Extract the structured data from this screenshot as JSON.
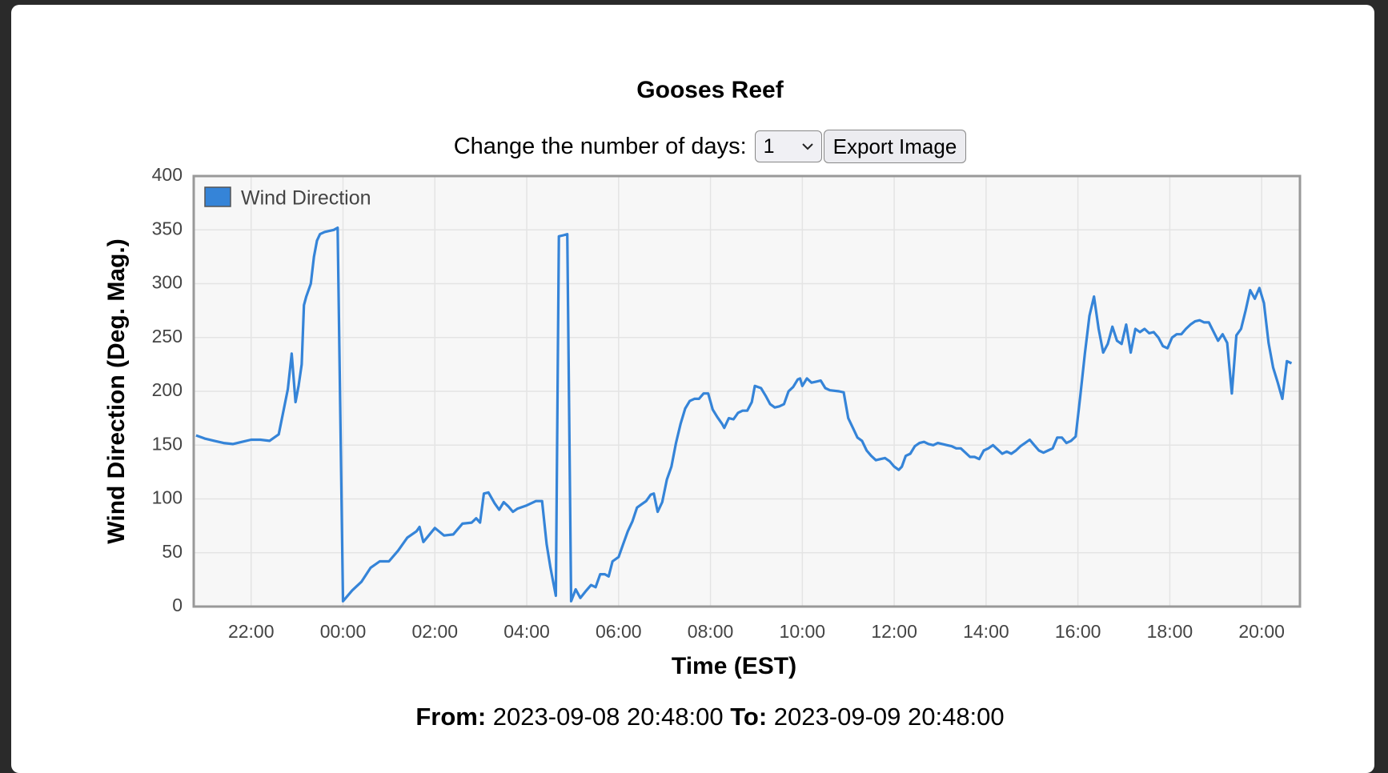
{
  "dialog": {
    "controls": {
      "label": "Change the number of days:",
      "days_option": "1",
      "export_button": "Export Image"
    },
    "footer": {
      "from_label": "From:",
      "from": "2023-09-08 20:48:00",
      "to_label": "To:",
      "to": "2023-09-09 20:48:00"
    }
  },
  "chart_data": {
    "type": "line",
    "title": "Gooses Reef",
    "xlabel": "Time (EST)",
    "ylabel": "Wind Direction (Deg. Mag.)",
    "x": [
      "2023-09-08T20:48",
      "2023-09-08T21:00",
      "2023-09-08T21:12",
      "2023-09-08T21:24",
      "2023-09-08T21:36",
      "2023-09-08T21:48",
      "2023-09-08T22:00",
      "2023-09-08T22:12",
      "2023-09-08T22:24",
      "2023-09-08T22:36",
      "2023-09-08T22:48",
      "2023-09-08T22:53",
      "2023-09-08T22:58",
      "2023-09-08T23:02",
      "2023-09-08T23:06",
      "2023-09-08T23:09",
      "2023-09-08T23:12",
      "2023-09-08T23:18",
      "2023-09-08T23:22",
      "2023-09-08T23:26",
      "2023-09-08T23:30",
      "2023-09-08T23:36",
      "2023-09-08T23:42",
      "2023-09-08T23:48",
      "2023-09-08T23:53",
      "2023-09-09T00:00",
      "2023-09-09T00:12",
      "2023-09-09T00:24",
      "2023-09-09T00:36",
      "2023-09-09T00:48",
      "2023-09-09T01:00",
      "2023-09-09T01:12",
      "2023-09-09T01:24",
      "2023-09-09T01:36",
      "2023-09-09T01:40",
      "2023-09-09T01:45",
      "2023-09-09T02:00",
      "2023-09-09T02:12",
      "2023-09-09T02:24",
      "2023-09-09T02:36",
      "2023-09-09T02:48",
      "2023-09-09T02:54",
      "2023-09-09T02:59",
      "2023-09-09T03:04",
      "2023-09-09T03:10",
      "2023-09-09T03:18",
      "2023-09-09T03:24",
      "2023-09-09T03:30",
      "2023-09-09T03:36",
      "2023-09-09T03:42",
      "2023-09-09T03:48",
      "2023-09-09T04:00",
      "2023-09-09T04:12",
      "2023-09-09T04:20",
      "2023-09-09T04:26",
      "2023-09-09T04:31",
      "2023-09-09T04:38",
      "2023-09-09T04:42",
      "2023-09-09T04:48",
      "2023-09-09T04:53",
      "2023-09-09T04:58",
      "2023-09-09T05:04",
      "2023-09-09T05:10",
      "2023-09-09T05:18",
      "2023-09-09T05:24",
      "2023-09-09T05:30",
      "2023-09-09T05:36",
      "2023-09-09T05:42",
      "2023-09-09T05:47",
      "2023-09-09T05:52",
      "2023-09-09T06:00",
      "2023-09-09T06:06",
      "2023-09-09T06:12",
      "2023-09-09T06:18",
      "2023-09-09T06:24",
      "2023-09-09T06:30",
      "2023-09-09T06:36",
      "2023-09-09T06:42",
      "2023-09-09T06:46",
      "2023-09-09T06:51",
      "2023-09-09T06:57",
      "2023-09-09T07:03",
      "2023-09-09T07:09",
      "2023-09-09T07:15",
      "2023-09-09T07:21",
      "2023-09-09T07:27",
      "2023-09-09T07:33",
      "2023-09-09T07:39",
      "2023-09-09T07:45",
      "2023-09-09T07:51",
      "2023-09-09T07:57",
      "2023-09-09T08:03",
      "2023-09-09T08:09",
      "2023-09-09T08:15",
      "2023-09-09T08:18",
      "2023-09-09T08:24",
      "2023-09-09T08:30",
      "2023-09-09T08:36",
      "2023-09-09T08:42",
      "2023-09-09T08:48",
      "2023-09-09T08:54",
      "2023-09-09T08:58",
      "2023-09-09T09:06",
      "2023-09-09T09:12",
      "2023-09-09T09:18",
      "2023-09-09T09:24",
      "2023-09-09T09:30",
      "2023-09-09T09:36",
      "2023-09-09T09:42",
      "2023-09-09T09:48",
      "2023-09-09T09:54",
      "2023-09-09T09:57",
      "2023-09-09T10:00",
      "2023-09-09T10:06",
      "2023-09-09T10:12",
      "2023-09-09T10:18",
      "2023-09-09T10:24",
      "2023-09-09T10:30",
      "2023-09-09T10:36",
      "2023-09-09T10:48",
      "2023-09-09T10:54",
      "2023-09-09T11:00",
      "2023-09-09T11:06",
      "2023-09-09T11:12",
      "2023-09-09T11:18",
      "2023-09-09T11:24",
      "2023-09-09T11:30",
      "2023-09-09T11:36",
      "2023-09-09T11:42",
      "2023-09-09T11:48",
      "2023-09-09T11:54",
      "2023-09-09T12:00",
      "2023-09-09T12:06",
      "2023-09-09T12:10",
      "2023-09-09T12:15",
      "2023-09-09T12:21",
      "2023-09-09T12:27",
      "2023-09-09T12:33",
      "2023-09-09T12:39",
      "2023-09-09T12:45",
      "2023-09-09T12:51",
      "2023-09-09T12:57",
      "2023-09-09T13:03",
      "2023-09-09T13:09",
      "2023-09-09T13:15",
      "2023-09-09T13:21",
      "2023-09-09T13:27",
      "2023-09-09T13:33",
      "2023-09-09T13:39",
      "2023-09-09T13:45",
      "2023-09-09T13:51",
      "2023-09-09T13:57",
      "2023-09-09T14:03",
      "2023-09-09T14:09",
      "2023-09-09T14:15",
      "2023-09-09T14:21",
      "2023-09-09T14:27",
      "2023-09-09T14:33",
      "2023-09-09T14:39",
      "2023-09-09T14:45",
      "2023-09-09T14:51",
      "2023-09-09T14:57",
      "2023-09-09T15:03",
      "2023-09-09T15:09",
      "2023-09-09T15:15",
      "2023-09-09T15:21",
      "2023-09-09T15:27",
      "2023-09-09T15:33",
      "2023-09-09T15:39",
      "2023-09-09T15:45",
      "2023-09-09T15:51",
      "2023-09-09T15:57",
      "2023-09-09T16:03",
      "2023-09-09T16:09",
      "2023-09-09T16:15",
      "2023-09-09T16:21",
      "2023-09-09T16:27",
      "2023-09-09T16:33",
      "2023-09-09T16:39",
      "2023-09-09T16:45",
      "2023-09-09T16:51",
      "2023-09-09T16:57",
      "2023-09-09T17:03",
      "2023-09-09T17:09",
      "2023-09-09T17:15",
      "2023-09-09T17:21",
      "2023-09-09T17:27",
      "2023-09-09T17:33",
      "2023-09-09T17:39",
      "2023-09-09T17:45",
      "2023-09-09T17:51",
      "2023-09-09T17:57",
      "2023-09-09T18:03",
      "2023-09-09T18:09",
      "2023-09-09T18:15",
      "2023-09-09T18:21",
      "2023-09-09T18:27",
      "2023-09-09T18:33",
      "2023-09-09T18:39",
      "2023-09-09T18:45",
      "2023-09-09T18:51",
      "2023-09-09T19:03",
      "2023-09-09T19:09",
      "2023-09-09T19:15",
      "2023-09-09T19:21",
      "2023-09-09T19:27",
      "2023-09-09T19:33",
      "2023-09-09T19:39",
      "2023-09-09T19:45",
      "2023-09-09T19:51",
      "2023-09-09T19:57",
      "2023-09-09T20:03",
      "2023-09-09T20:09",
      "2023-09-09T20:15",
      "2023-09-09T20:21",
      "2023-09-09T20:27",
      "2023-09-09T20:33",
      "2023-09-09T20:39"
    ],
    "series": [
      {
        "name": "Wind Direction",
        "color": "#3584d8",
        "values": [
          159,
          156,
          154,
          152,
          151,
          153,
          155,
          155,
          154,
          160,
          202,
          235,
          190,
          205,
          225,
          280,
          288,
          300,
          325,
          340,
          346,
          348,
          349,
          350,
          352,
          5,
          15,
          23,
          36,
          42,
          42,
          52,
          64,
          70,
          74,
          60,
          73,
          66,
          67,
          77,
          78,
          82,
          78,
          105,
          106,
          96,
          90,
          97,
          93,
          88,
          91,
          94,
          98,
          98,
          58,
          36,
          10,
          344,
          345,
          346,
          5,
          16,
          8,
          15,
          20,
          18,
          30,
          30,
          28,
          42,
          46,
          58,
          70,
          79,
          92,
          95,
          98,
          104,
          105,
          88,
          97,
          118,
          130,
          152,
          170,
          184,
          191,
          193,
          193,
          198,
          198,
          183,
          176,
          170,
          166,
          175,
          174,
          180,
          182,
          182,
          190,
          205,
          203,
          196,
          188,
          185,
          186,
          188,
          200,
          204,
          211,
          212,
          205,
          212,
          208,
          209,
          210,
          203,
          201,
          200,
          199,
          175,
          166,
          157,
          154,
          145,
          140,
          136,
          137,
          138,
          135,
          130,
          127,
          130,
          140,
          142,
          149,
          152,
          153,
          151,
          150,
          152,
          151,
          150,
          149,
          147,
          147,
          143,
          139,
          139,
          137,
          145,
          147,
          150,
          146,
          142,
          144,
          142,
          145,
          149,
          152,
          155,
          150,
          145,
          143,
          145,
          147,
          157,
          157,
          152,
          154,
          158,
          195,
          235,
          270,
          288,
          258,
          236,
          244,
          260,
          247,
          244,
          262,
          236,
          258,
          255,
          258,
          254,
          255,
          250,
          242,
          240,
          250,
          253,
          253,
          258,
          262,
          265,
          266,
          264,
          264,
          247,
          253,
          245,
          198,
          252,
          258,
          275,
          294,
          286,
          296,
          282,
          245,
          222,
          208,
          193,
          228,
          226
        ]
      }
    ],
    "xlim": [
      "2023-09-08T20:45",
      "2023-09-09T20:50"
    ],
    "xticks": [
      {
        "value": "2023-09-08T22:00",
        "label": "22:00"
      },
      {
        "value": "2023-09-09T00:00",
        "label": "00:00"
      },
      {
        "value": "2023-09-09T02:00",
        "label": "02:00"
      },
      {
        "value": "2023-09-09T04:00",
        "label": "04:00"
      },
      {
        "value": "2023-09-09T06:00",
        "label": "06:00"
      },
      {
        "value": "2023-09-09T08:00",
        "label": "08:00"
      },
      {
        "value": "2023-09-09T10:00",
        "label": "10:00"
      },
      {
        "value": "2023-09-09T12:00",
        "label": "12:00"
      },
      {
        "value": "2023-09-09T14:00",
        "label": "14:00"
      },
      {
        "value": "2023-09-09T16:00",
        "label": "16:00"
      },
      {
        "value": "2023-09-09T18:00",
        "label": "18:00"
      },
      {
        "value": "2023-09-09T20:00",
        "label": "20:00"
      }
    ],
    "ylim": [
      0,
      400
    ],
    "yticks": [
      0,
      50,
      100,
      150,
      200,
      250,
      300,
      350,
      400
    ],
    "grid": true,
    "legend": "upper left"
  }
}
